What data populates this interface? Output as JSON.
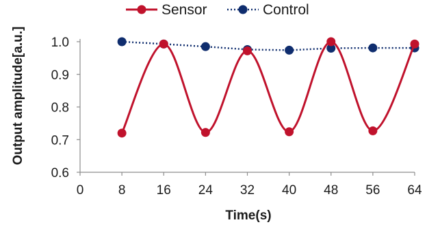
{
  "chart_data": {
    "type": "line",
    "title": "",
    "xlabel": "Time(s)",
    "ylabel": "Output amplitude[a.u.]",
    "xlim": [
      0,
      64
    ],
    "ylim": [
      0.6,
      1.0
    ],
    "x_ticks": [
      0,
      8,
      16,
      24,
      32,
      40,
      48,
      56,
      64
    ],
    "x_tick_labels": [
      "0",
      "8",
      "16",
      "24",
      "32",
      "40",
      "48",
      "56",
      "64"
    ],
    "y_ticks": [
      0.6,
      0.7,
      0.8,
      0.9,
      1.0
    ],
    "y_tick_labels": [
      "0.6",
      "0.7",
      "0.8",
      "0.9",
      "1.0"
    ],
    "grid": false,
    "legend_position": "top",
    "series": [
      {
        "name": "Sensor",
        "color": "#c0122c",
        "line_style": "solid-smooth",
        "marker": "circle",
        "x": [
          8,
          16,
          24,
          32,
          40,
          48,
          56,
          64
        ],
        "y": [
          0.72,
          0.993,
          0.722,
          0.972,
          0.724,
          1.0,
          0.727,
          0.993
        ]
      },
      {
        "name": "Control",
        "color": "#0f2d6e",
        "line_style": "dotted",
        "marker": "circle",
        "x": [
          8,
          16,
          24,
          32,
          40,
          48,
          56,
          64
        ],
        "y": [
          1.0,
          0.993,
          0.985,
          0.976,
          0.974,
          0.98,
          0.981,
          0.981
        ]
      }
    ]
  }
}
